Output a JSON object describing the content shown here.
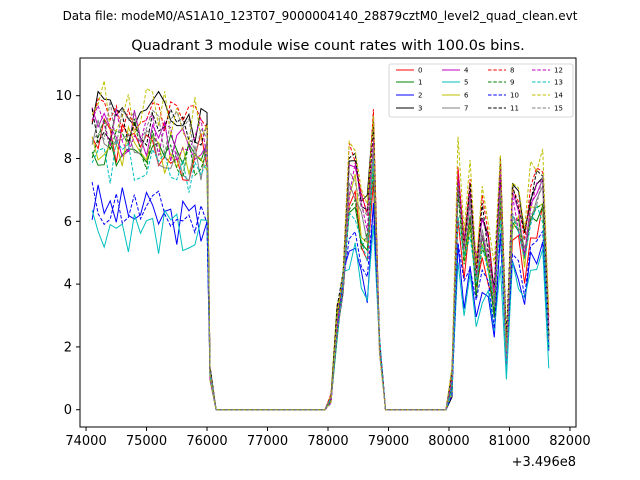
{
  "figure": {
    "suptitle": "Data file: modeM0/AS1A10_123T07_9000004140_28879cztM0_level2_quad_clean.evt"
  },
  "chart_data": {
    "type": "line",
    "title": "Quadrant 3 module wise count rates with 100.0s bins.",
    "xlabel": "",
    "ylabel": "",
    "x_offset_label": "+3.496e8",
    "xlim": [
      73900,
      82100
    ],
    "ylim": [
      -0.55,
      11.2
    ],
    "xticks": [
      74000,
      75000,
      76000,
      77000,
      78000,
      79000,
      80000,
      81000,
      82000
    ],
    "xtick_labels": [
      "74000",
      "75000",
      "76000",
      "77000",
      "78000",
      "79000",
      "80000",
      "81000",
      "82000"
    ],
    "yticks": [
      0,
      2,
      4,
      6,
      8,
      10
    ],
    "ytick_labels": [
      "0",
      "2",
      "4",
      "6",
      "8",
      "10"
    ],
    "grid": false,
    "legend_position": "top-right",
    "legend_columns": 4,
    "x_unit": "s (offset 3.496e8)",
    "segments": [
      {
        "x_start": 74100,
        "x_end": 76000,
        "step": 100
      },
      {
        "x_start": 76050,
        "x_end": 76150,
        "step": 100
      },
      {
        "x_start": 76150,
        "x_end": 77950,
        "step": 100
      },
      {
        "x_start": 78050,
        "x_end": 78850,
        "step": 100
      },
      {
        "x_start": 78950,
        "x_end": 79950,
        "step": 100
      },
      {
        "x_start": 80050,
        "x_end": 81650,
        "step": 100
      }
    ],
    "series": [
      {
        "name": "0",
        "color": "#ff0000",
        "dash": "solid",
        "level": 8.0,
        "window_level": 6.0,
        "seed": 1
      },
      {
        "name": "1",
        "color": "#008000",
        "dash": "solid",
        "level": 8.2,
        "window_level": 6.5,
        "seed": 2
      },
      {
        "name": "2",
        "color": "#0000ff",
        "dash": "solid",
        "level": 6.3,
        "window_level": 5.0,
        "seed": 3
      },
      {
        "name": "3",
        "color": "#000000",
        "dash": "solid",
        "level": 9.2,
        "window_level": 7.6,
        "seed": 4
      },
      {
        "name": "4",
        "color": "#bf00bf",
        "dash": "solid",
        "level": 8.8,
        "window_level": 7.2,
        "seed": 5
      },
      {
        "name": "5",
        "color": "#00bfbf",
        "dash": "solid",
        "level": 5.8,
        "window_level": 4.6,
        "seed": 6
      },
      {
        "name": "6",
        "color": "#bfbf00",
        "dash": "solid",
        "level": 8.0,
        "window_level": 6.6,
        "seed": 7
      },
      {
        "name": "7",
        "color": "#808080",
        "dash": "solid",
        "level": 8.4,
        "window_level": 6.8,
        "seed": 8
      },
      {
        "name": "8",
        "color": "#ff0000",
        "dash": "dashed",
        "level": 9.4,
        "window_level": 7.8,
        "seed": 9
      },
      {
        "name": "9",
        "color": "#008000",
        "dash": "dashed",
        "level": 8.1,
        "window_level": 6.4,
        "seed": 10
      },
      {
        "name": "10",
        "color": "#0000ff",
        "dash": "dashed",
        "level": 6.4,
        "window_level": 5.2,
        "seed": 11
      },
      {
        "name": "11",
        "color": "#000000",
        "dash": "dashed",
        "level": 9.0,
        "window_level": 7.5,
        "seed": 12
      },
      {
        "name": "12",
        "color": "#bf00bf",
        "dash": "dashed",
        "level": 8.5,
        "window_level": 7.0,
        "seed": 13
      },
      {
        "name": "13",
        "color": "#00bfbf",
        "dash": "dashed",
        "level": 7.8,
        "window_level": 6.2,
        "seed": 14
      },
      {
        "name": "14",
        "color": "#bfbf00",
        "dash": "dashed",
        "level": 9.6,
        "window_level": 8.2,
        "seed": 15
      },
      {
        "name": "15",
        "color": "#808080",
        "dash": "dashed",
        "level": 8.6,
        "window_level": 7.0,
        "seed": 16
      }
    ]
  }
}
